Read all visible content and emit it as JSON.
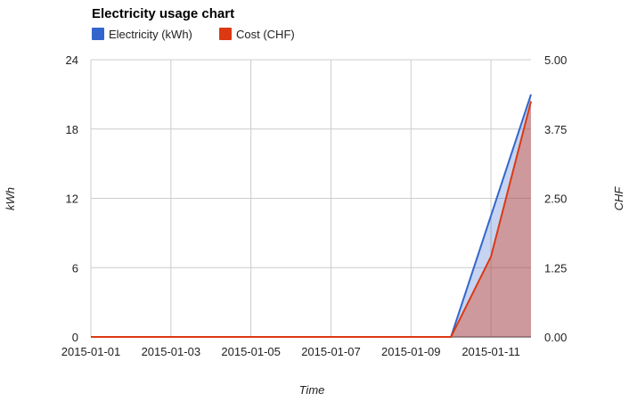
{
  "chart_data": {
    "type": "area",
    "title": "Electricity usage chart",
    "xlabel": "Time",
    "ylabel_left": "kWh",
    "ylabel_right": "CHF",
    "x": [
      "2015-01-01",
      "2015-01-02",
      "2015-01-03",
      "2015-01-04",
      "2015-01-05",
      "2015-01-06",
      "2015-01-07",
      "2015-01-08",
      "2015-01-09",
      "2015-01-10",
      "2015-01-11",
      "2015-01-12"
    ],
    "x_tick_labels": [
      "2015-01-01",
      "2015-01-03",
      "2015-01-05",
      "2015-01-07",
      "2015-01-09",
      "2015-01-11"
    ],
    "xlim": [
      "2015-01-01",
      "2015-01-12"
    ],
    "ylim_left": [
      0,
      24
    ],
    "ylim_right": [
      0,
      5
    ],
    "y_ticks_left": [
      "0",
      "6",
      "12",
      "18",
      "24"
    ],
    "y_ticks_right": [
      "0.00",
      "1.25",
      "2.50",
      "3.75",
      "5.00"
    ],
    "grid": true,
    "legend_position": "top-left",
    "series": [
      {
        "name": "Electricity (kWh)",
        "axis": "left",
        "color": "#3366cc",
        "values": [
          0,
          0,
          0,
          0,
          0,
          0,
          0,
          0,
          0,
          0,
          10.5,
          21
        ]
      },
      {
        "name": "Cost (CHF)",
        "axis": "right",
        "color": "#dc3912",
        "values": [
          0,
          0,
          0,
          0,
          0,
          0,
          0,
          0,
          0,
          0,
          1.45,
          4.25
        ]
      }
    ]
  }
}
